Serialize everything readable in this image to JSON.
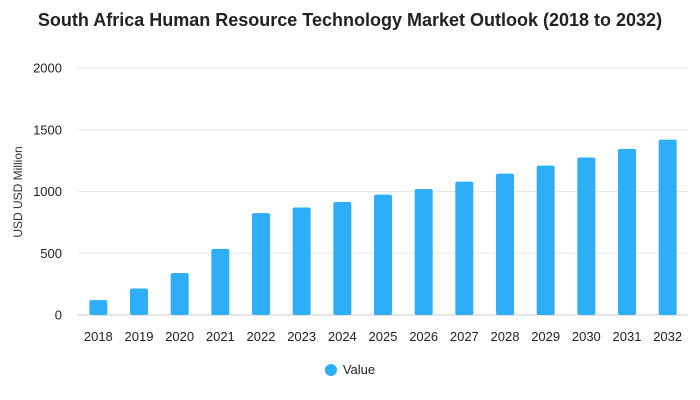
{
  "chart_data": {
    "type": "bar",
    "title": "South Africa Human Resource Technology Market Outlook (2018 to 2032)",
    "xlabel": "",
    "ylabel": "USD USD Million",
    "categories": [
      "2018",
      "2019",
      "2020",
      "2021",
      "2022",
      "2023",
      "2024",
      "2025",
      "2026",
      "2027",
      "2028",
      "2029",
      "2030",
      "2031",
      "2032"
    ],
    "series": [
      {
        "name": "Value",
        "color": "#2eaef7",
        "values": [
          120,
          215,
          340,
          535,
          825,
          870,
          915,
          975,
          1020,
          1080,
          1145,
          1210,
          1275,
          1345,
          1420
        ]
      }
    ],
    "ylim": [
      0,
      2000
    ],
    "yticks": [
      0,
      500,
      1000,
      1500,
      2000
    ],
    "grid": true,
    "legend_position": "bottom"
  }
}
